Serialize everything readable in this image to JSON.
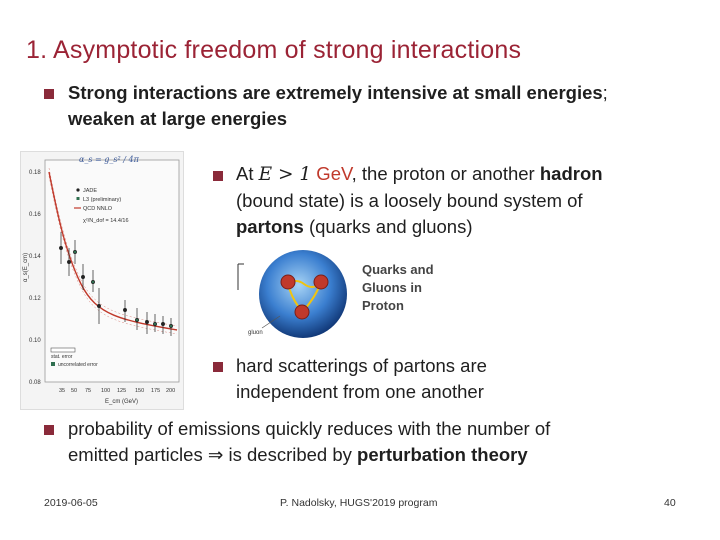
{
  "slide": {
    "title": "1. Asymptotic freedom of strong interactions",
    "bullet1_line1_bold": "Strong interactions are extremely intensive at small energies",
    "bullet1_line1_end": ";",
    "bullet1_line2": "weaken at large energies",
    "bullet2_at": "At ",
    "bullet2_math": "E > 1",
    "bullet2_unit": " GeV",
    "bullet2_rest1": ", the proton or another ",
    "bullet2_hadron": "hadron",
    "bullet2_line2": "(bound state) is a loosely bound system of",
    "bullet2_partons": "partons",
    "bullet2_line3_rest": " (quarks and gluons)",
    "bullet3_line1": "hard scatterings of partons are",
    "bullet3_line2": "independent from one another",
    "bullet4_line1": "probability of emissions quickly reduces with the number of",
    "bullet4_line2_start": "emitted particles ",
    "bullet4_arrow": "⇒",
    "bullet4_line2_mid": " is described by ",
    "bullet4_line2_bold": "perturbation theory"
  },
  "plot": {
    "header": "α_s = g_s² / 4π",
    "y_ticks": [
      "0.18",
      "0.16",
      "0.14",
      "0.12",
      "0.10",
      "0.08"
    ],
    "y_label": "α_s(E_cm)",
    "x_ticks": [
      "35",
      "50",
      "75",
      "100",
      "125",
      "150",
      "175",
      "200"
    ],
    "x_label": "E_cm (GeV)",
    "legend": [
      "JADE",
      "L3 (preliminary)",
      "QCD NNLO",
      "χ²/N_dof = 14.4/16"
    ],
    "sublegend": [
      "stat. error",
      "uncorrelated error"
    ],
    "colors": {
      "curve": "#c0392b",
      "data": "#2f6f4f",
      "accent": "#3b5998"
    }
  },
  "proton": {
    "label_line1": "Quarks and",
    "label_line2": "Gluons in",
    "label_line3": "Proton",
    "gluon_label": "gluon"
  },
  "footer": {
    "date": "2019-06-05",
    "center": "P. Nadolsky, HUGS'2019 program",
    "page": "40"
  }
}
